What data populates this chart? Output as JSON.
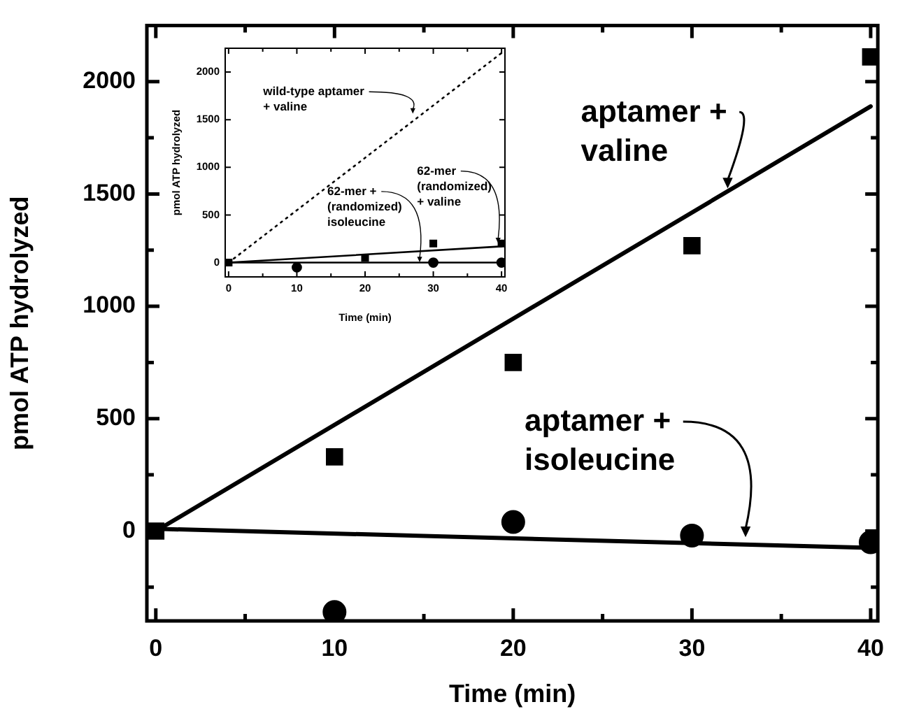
{
  "chart_data": [
    {
      "type": "scatter",
      "xlabel": "Time (min)",
      "ylabel": "pmol ATP hydrolyzed",
      "xlim": [
        -0.5,
        40.4
      ],
      "ylim": [
        -400,
        2250
      ],
      "xticks": [
        0,
        {
          "value": 5,
          "label": null
        },
        10,
        {
          "value": 15,
          "label": null
        },
        20,
        {
          "value": 25,
          "label": null
        },
        30,
        {
          "value": 35,
          "label": null
        },
        40
      ],
      "yticks": [
        {
          "value": -250,
          "label": null
        },
        0,
        {
          "value": 250,
          "label": null
        },
        500,
        {
          "value": 750,
          "label": null
        },
        1000,
        {
          "value": 1250,
          "label": null
        },
        1500,
        {
          "value": 1750,
          "label": null
        },
        2000
      ],
      "grid": false,
      "legend": false,
      "series": [
        {
          "marker": "square",
          "color": "#000000",
          "x": [
            0,
            10,
            20,
            30,
            40
          ],
          "values": [
            0,
            330,
            750,
            1270,
            2110
          ]
        },
        {
          "type": "line",
          "line_style": "solid",
          "color": "#000000",
          "x": [
            0,
            40
          ],
          "values": [
            0,
            1890
          ]
        },
        {
          "marker": "circle",
          "color": "#000000",
          "x": [
            10,
            20,
            30,
            40
          ],
          "values": [
            -360,
            40,
            -20,
            -50
          ]
        },
        {
          "type": "line",
          "line_style": "solid",
          "color": "#000000",
          "x": [
            0,
            40
          ],
          "values": [
            10,
            -75
          ]
        }
      ],
      "annotations": [
        {
          "text": "aptamer +\nvaline",
          "x": 32,
          "y": 1512
        },
        {
          "text": "aptamer +\nisoleucine",
          "x": 33,
          "y": -40
        }
      ]
    },
    {
      "type": "scatter",
      "xlabel": "Time (min)",
      "ylabel": "pmol ATP hydrolyzed",
      "xlim": [
        -0.5,
        40.5
      ],
      "ylim": [
        -150,
        2250
      ],
      "xticks": [
        0,
        {
          "value": 5,
          "label": null
        },
        10,
        {
          "value": 15,
          "label": null
        },
        20,
        {
          "value": 25,
          "label": null
        },
        30,
        {
          "value": 35,
          "label": null
        },
        40
      ],
      "yticks": [
        0,
        500,
        1000,
        1500,
        2000
      ],
      "grid": false,
      "legend": false,
      "series": [
        {
          "type": "line",
          "line_style": "dotted",
          "color": "#000000",
          "x": [
            0,
            40
          ],
          "values": [
            0,
            2200
          ]
        },
        {
          "marker": "square",
          "color": "#000000",
          "x": [
            0,
            10,
            20,
            30,
            40
          ],
          "values": [
            0,
            null,
            50,
            200,
            200
          ]
        },
        {
          "type": "line",
          "line_style": "solid",
          "color": "#000000",
          "x": [
            0,
            40
          ],
          "values": [
            0,
            170
          ]
        },
        {
          "marker": "circle",
          "color": "#000000",
          "x": [
            10,
            30,
            40
          ],
          "values": [
            -50,
            0,
            0
          ]
        },
        {
          "type": "line",
          "line_style": "solid",
          "color": "#000000",
          "x": [
            0,
            40
          ],
          "values": [
            0,
            0
          ]
        }
      ],
      "annotations": [
        {
          "text": "wild-type aptamer\n+ valine",
          "x": 27,
          "y": 1550
        },
        {
          "text": "62-mer +\n(randomized)\nisoleucine",
          "x": 28,
          "y": -10
        },
        {
          "text": "62-mer\n(randomized)\n+ valine",
          "x": 39.5,
          "y": 190
        }
      ]
    }
  ]
}
